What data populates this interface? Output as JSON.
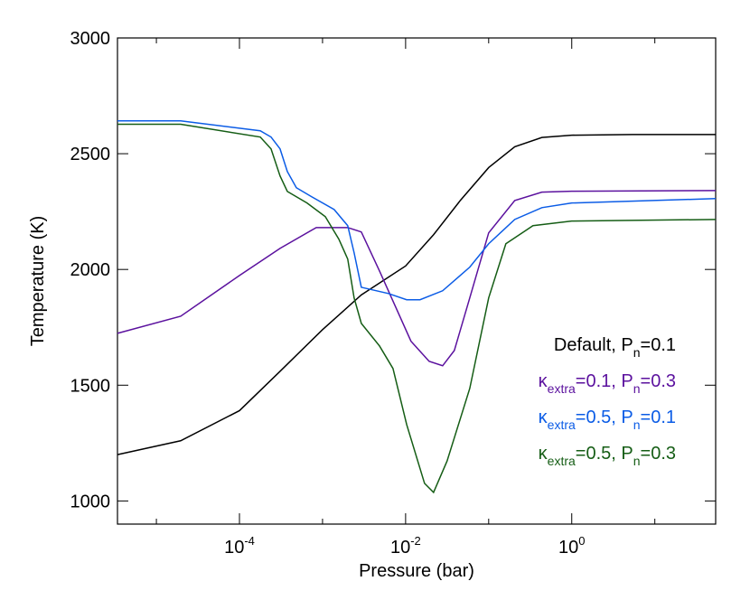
{
  "chart_data": {
    "type": "line",
    "xlabel": "Pressure (bar)",
    "ylabel": "Temperature (K)",
    "xscale": "log",
    "xlim": [
      3.4e-06,
      54
    ],
    "ylim": [
      900,
      3000
    ],
    "xticks": [
      {
        "value": 0.0001,
        "label": "10",
        "exponent": "-4"
      },
      {
        "value": 0.01,
        "label": "10",
        "exponent": "-2"
      },
      {
        "value": 1,
        "label": "10",
        "exponent": "0"
      }
    ],
    "xminorticks": [
      1e-05,
      0.001,
      0.1,
      10
    ],
    "yticks": [
      1000,
      1500,
      2000,
      2500,
      3000
    ],
    "legend": "right",
    "series": [
      {
        "name": [
          {
            "text": "Default, P"
          },
          {
            "text": "n",
            "sub": true
          },
          {
            "text": "=0.1"
          }
        ],
        "color": "#000000",
        "x": [
          3.4e-06,
          1.96e-05,
          0.0001,
          0.000308,
          0.001,
          0.00293,
          0.01,
          0.0217,
          0.046,
          0.1,
          0.206,
          0.437,
          1,
          5.35,
          54
        ],
        "values": [
          1200,
          1260,
          1390,
          1560,
          1740,
          1890,
          2015,
          2150,
          2300,
          2440,
          2530,
          2570,
          2580,
          2583,
          2583
        ]
      },
      {
        "name": [
          {
            "text": "κ"
          },
          {
            "text": "extra",
            "sub": true
          },
          {
            "text": "=0.1, P"
          },
          {
            "text": "n",
            "sub": true
          },
          {
            "text": "=0.3"
          }
        ],
        "color": "#5b119e",
        "x": [
          3.4e-06,
          1.96e-05,
          0.0001,
          0.000308,
          0.00084,
          0.00201,
          0.00293,
          0.00484,
          0.0116,
          0.0192,
          0.0279,
          0.0386,
          0.0592,
          0.1,
          0.206,
          0.437,
          1,
          54
        ],
        "values": [
          1724,
          1798,
          1974,
          2091,
          2181,
          2181,
          2162,
          1994,
          1690,
          1603,
          1584,
          1650,
          1877,
          2158,
          2298,
          2334,
          2338,
          2341
        ]
      },
      {
        "name": [
          {
            "text": "κ"
          },
          {
            "text": "extra",
            "sub": true
          },
          {
            "text": "=0.5, P"
          },
          {
            "text": "n",
            "sub": true
          },
          {
            "text": "=0.1"
          }
        ],
        "color": "#0b5ce6",
        "x": [
          3.4e-06,
          1.96e-05,
          0.000178,
          0.00024,
          0.000308,
          0.000377,
          0.000484,
          0.00074,
          0.00138,
          0.00201,
          0.0024,
          0.00293,
          0.0062,
          0.0103,
          0.0149,
          0.0279,
          0.0592,
          0.1,
          0.206,
          0.437,
          1,
          54
        ],
        "values": [
          2642,
          2642,
          2599,
          2572,
          2521,
          2423,
          2353,
          2314,
          2259,
          2189,
          2072,
          1923,
          1896,
          1869,
          1869,
          1908,
          2010,
          2111,
          2216,
          2267,
          2287,
          2306
        ]
      },
      {
        "name": [
          {
            "text": "κ"
          },
          {
            "text": "extra",
            "sub": true
          },
          {
            "text": "=0.5, P"
          },
          {
            "text": "n",
            "sub": true
          },
          {
            "text": "=0.3"
          }
        ],
        "color": "#155d15",
        "x": [
          3.4e-06,
          1.96e-05,
          0.000178,
          0.00024,
          0.000308,
          0.000377,
          0.00065,
          0.00108,
          0.00157,
          0.00201,
          0.0024,
          0.00293,
          0.00484,
          0.00705,
          0.0103,
          0.0169,
          0.0217,
          0.0316,
          0.0592,
          0.1,
          0.161,
          0.341,
          1,
          54
        ],
        "values": [
          2627,
          2627,
          2572,
          2521,
          2404,
          2337,
          2287,
          2228,
          2131,
          2045,
          1877,
          1767,
          1670,
          1572,
          1330,
          1076,
          1037,
          1173,
          1486,
          1877,
          2111,
          2189,
          2209,
          2216
        ]
      }
    ]
  }
}
